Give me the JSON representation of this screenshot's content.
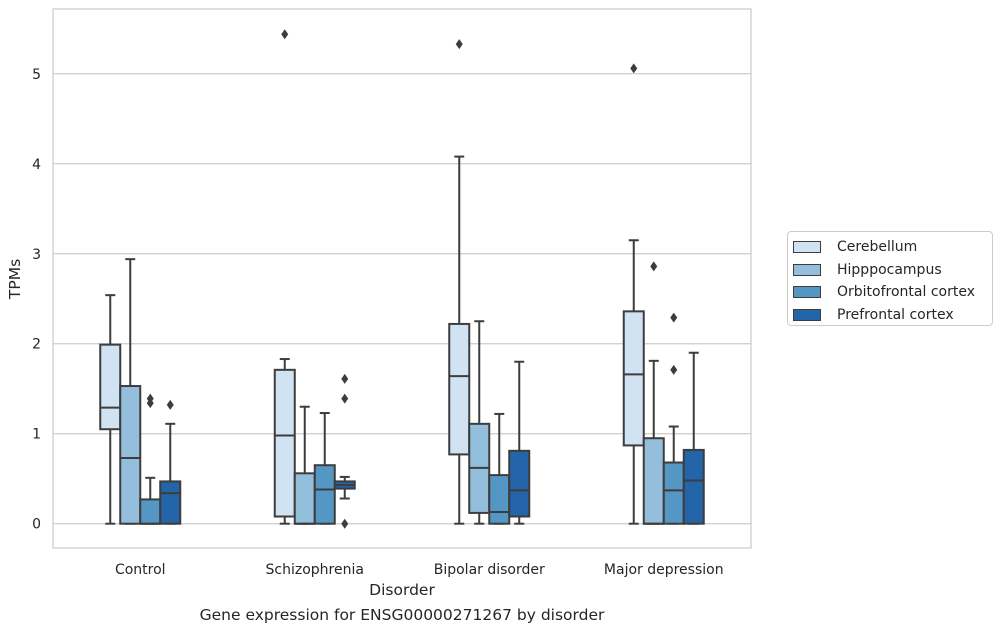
{
  "chart_data": {
    "type": "box",
    "xlabel": "Disorder",
    "ylabel": "TPMs",
    "caption": "Gene expression for ENSG00000271267 by disorder",
    "categories": [
      "Control",
      "Schizophrenia",
      "Bipolar disorder",
      "Major depression"
    ],
    "yticks": [
      "0",
      "1",
      "2",
      "3",
      "4",
      "5"
    ],
    "ylim": [
      -0.27,
      5.72
    ],
    "grid": "horizontal",
    "legend_position": "right",
    "series": [
      {
        "name": "Cerebellum",
        "color": "#d1e2f2",
        "boxes": [
          {
            "whisker_low": 0.0,
            "q1": 1.05,
            "median": 1.29,
            "q3": 1.99,
            "whisker_high": 2.54,
            "outliers": []
          },
          {
            "whisker_low": 0.0,
            "q1": 0.08,
            "median": 0.98,
            "q3": 1.71,
            "whisker_high": 1.83,
            "outliers": [
              5.44
            ]
          },
          {
            "whisker_low": 0.0,
            "q1": 0.77,
            "median": 1.64,
            "q3": 2.22,
            "whisker_high": 4.08,
            "outliers": [
              5.33
            ]
          },
          {
            "whisker_low": 0.0,
            "q1": 0.87,
            "median": 1.66,
            "q3": 2.36,
            "whisker_high": 3.15,
            "outliers": [
              5.06
            ]
          }
        ]
      },
      {
        "name": "Hipppocampus",
        "color": "#94bfdc",
        "boxes": [
          {
            "whisker_low": 0.0,
            "q1": 0.0,
            "median": 0.73,
            "q3": 1.53,
            "whisker_high": 2.94,
            "outliers": []
          },
          {
            "whisker_low": 0.0,
            "q1": 0.0,
            "median": 0.0,
            "q3": 0.56,
            "whisker_high": 1.3,
            "outliers": []
          },
          {
            "whisker_low": 0.0,
            "q1": 0.12,
            "median": 0.62,
            "q3": 1.11,
            "whisker_high": 2.25,
            "outliers": []
          },
          {
            "whisker_low": 0.0,
            "q1": 0.0,
            "median": 0.0,
            "q3": 0.95,
            "whisker_high": 1.81,
            "outliers": [
              2.86
            ]
          }
        ]
      },
      {
        "name": "Orbitofrontal cortex",
        "color": "#5597c4",
        "boxes": [
          {
            "whisker_low": 0.0,
            "q1": 0.0,
            "median": 0.0,
            "q3": 0.27,
            "whisker_high": 0.51,
            "outliers": [
              1.34,
              1.39
            ]
          },
          {
            "whisker_low": 0.0,
            "q1": 0.0,
            "median": 0.38,
            "q3": 0.65,
            "whisker_high": 1.23,
            "outliers": []
          },
          {
            "whisker_low": 0.0,
            "q1": 0.0,
            "median": 0.13,
            "q3": 0.54,
            "whisker_high": 1.22,
            "outliers": []
          },
          {
            "whisker_low": 0.0,
            "q1": 0.0,
            "median": 0.37,
            "q3": 0.68,
            "whisker_high": 1.08,
            "outliers": [
              1.71,
              2.29
            ]
          }
        ]
      },
      {
        "name": "Prefrontal cortex",
        "color": "#2464a8",
        "boxes": [
          {
            "whisker_low": 0.0,
            "q1": 0.0,
            "median": 0.34,
            "q3": 0.47,
            "whisker_high": 1.11,
            "outliers": [
              1.32
            ]
          },
          {
            "whisker_low": 0.28,
            "q1": 0.39,
            "median": 0.43,
            "q3": 0.47,
            "whisker_high": 0.52,
            "outliers": [
              0.0,
              1.39,
              1.61
            ]
          },
          {
            "whisker_low": 0.0,
            "q1": 0.08,
            "median": 0.37,
            "q3": 0.81,
            "whisker_high": 1.8,
            "outliers": []
          },
          {
            "whisker_low": 0.0,
            "q1": 0.0,
            "median": 0.48,
            "q3": 0.82,
            "whisker_high": 1.9,
            "outliers": []
          }
        ]
      }
    ]
  }
}
